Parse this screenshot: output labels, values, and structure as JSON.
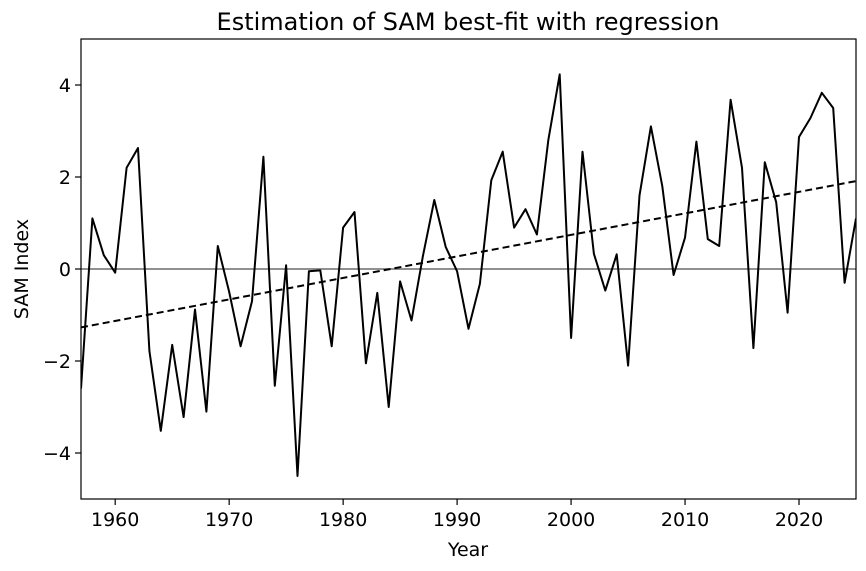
{
  "chart_data": {
    "type": "line",
    "title": "Estimation of SAM best-fit with regression",
    "xlabel": "Year",
    "ylabel": "SAM Index",
    "xlim": [
      1957,
      2025
    ],
    "ylim": [
      -5,
      5
    ],
    "xticks": [
      1960,
      1970,
      1980,
      1990,
      2000,
      2010,
      2020
    ],
    "yticks": [
      -4,
      -2,
      0,
      2,
      4
    ],
    "grid": false,
    "legend": "none",
    "series": [
      {
        "color": "#000000",
        "style": "solid",
        "x": [
          1957,
          1958,
          1959,
          1960,
          1961,
          1962,
          1963,
          1964,
          1965,
          1966,
          1967,
          1968,
          1969,
          1970,
          1971,
          1972,
          1973,
          1974,
          1975,
          1976,
          1977,
          1978,
          1979,
          1980,
          1981,
          1982,
          1983,
          1984,
          1985,
          1986,
          1987,
          1988,
          1989,
          1990,
          1991,
          1992,
          1993,
          1994,
          1995,
          1996,
          1997,
          1998,
          1999,
          2000,
          2001,
          2002,
          2003,
          2004,
          2005,
          2006,
          2007,
          2008,
          2009,
          2010,
          2011,
          2012,
          2013,
          2014,
          2015,
          2016,
          2017,
          2018,
          2019,
          2020,
          2021,
          2022,
          2023,
          2024,
          2025
        ],
        "values": [
          -2.6,
          1.1,
          0.3,
          -0.08,
          2.2,
          2.63,
          -1.78,
          -3.52,
          -1.65,
          -3.22,
          -0.88,
          -3.1,
          0.5,
          -0.5,
          -1.68,
          -0.7,
          2.44,
          -2.54,
          0.08,
          -4.5,
          -0.05,
          -0.03,
          -1.68,
          0.9,
          1.24,
          -2.05,
          -0.52,
          -3.0,
          -0.27,
          -1.12,
          0.28,
          1.5,
          0.48,
          -0.05,
          -1.3,
          -0.32,
          1.93,
          2.55,
          0.9,
          1.3,
          0.75,
          2.8,
          4.23,
          -1.5,
          2.55,
          0.33,
          -0.47,
          0.32,
          -2.1,
          1.6,
          3.1,
          1.8,
          -0.13,
          0.68,
          2.77,
          0.65,
          0.5,
          3.68,
          2.2,
          -1.72,
          2.32,
          1.45,
          -0.95,
          2.87,
          3.28,
          3.83,
          3.5,
          -0.3,
          1.1
        ]
      },
      {
        "color": "#000000",
        "style": "dashed",
        "x": [
          1957,
          2025
        ],
        "values": [
          -1.27,
          1.91
        ]
      },
      {
        "color": "#808080",
        "style": "solid",
        "x": [
          1957,
          2025
        ],
        "values": [
          0,
          0
        ]
      }
    ]
  }
}
